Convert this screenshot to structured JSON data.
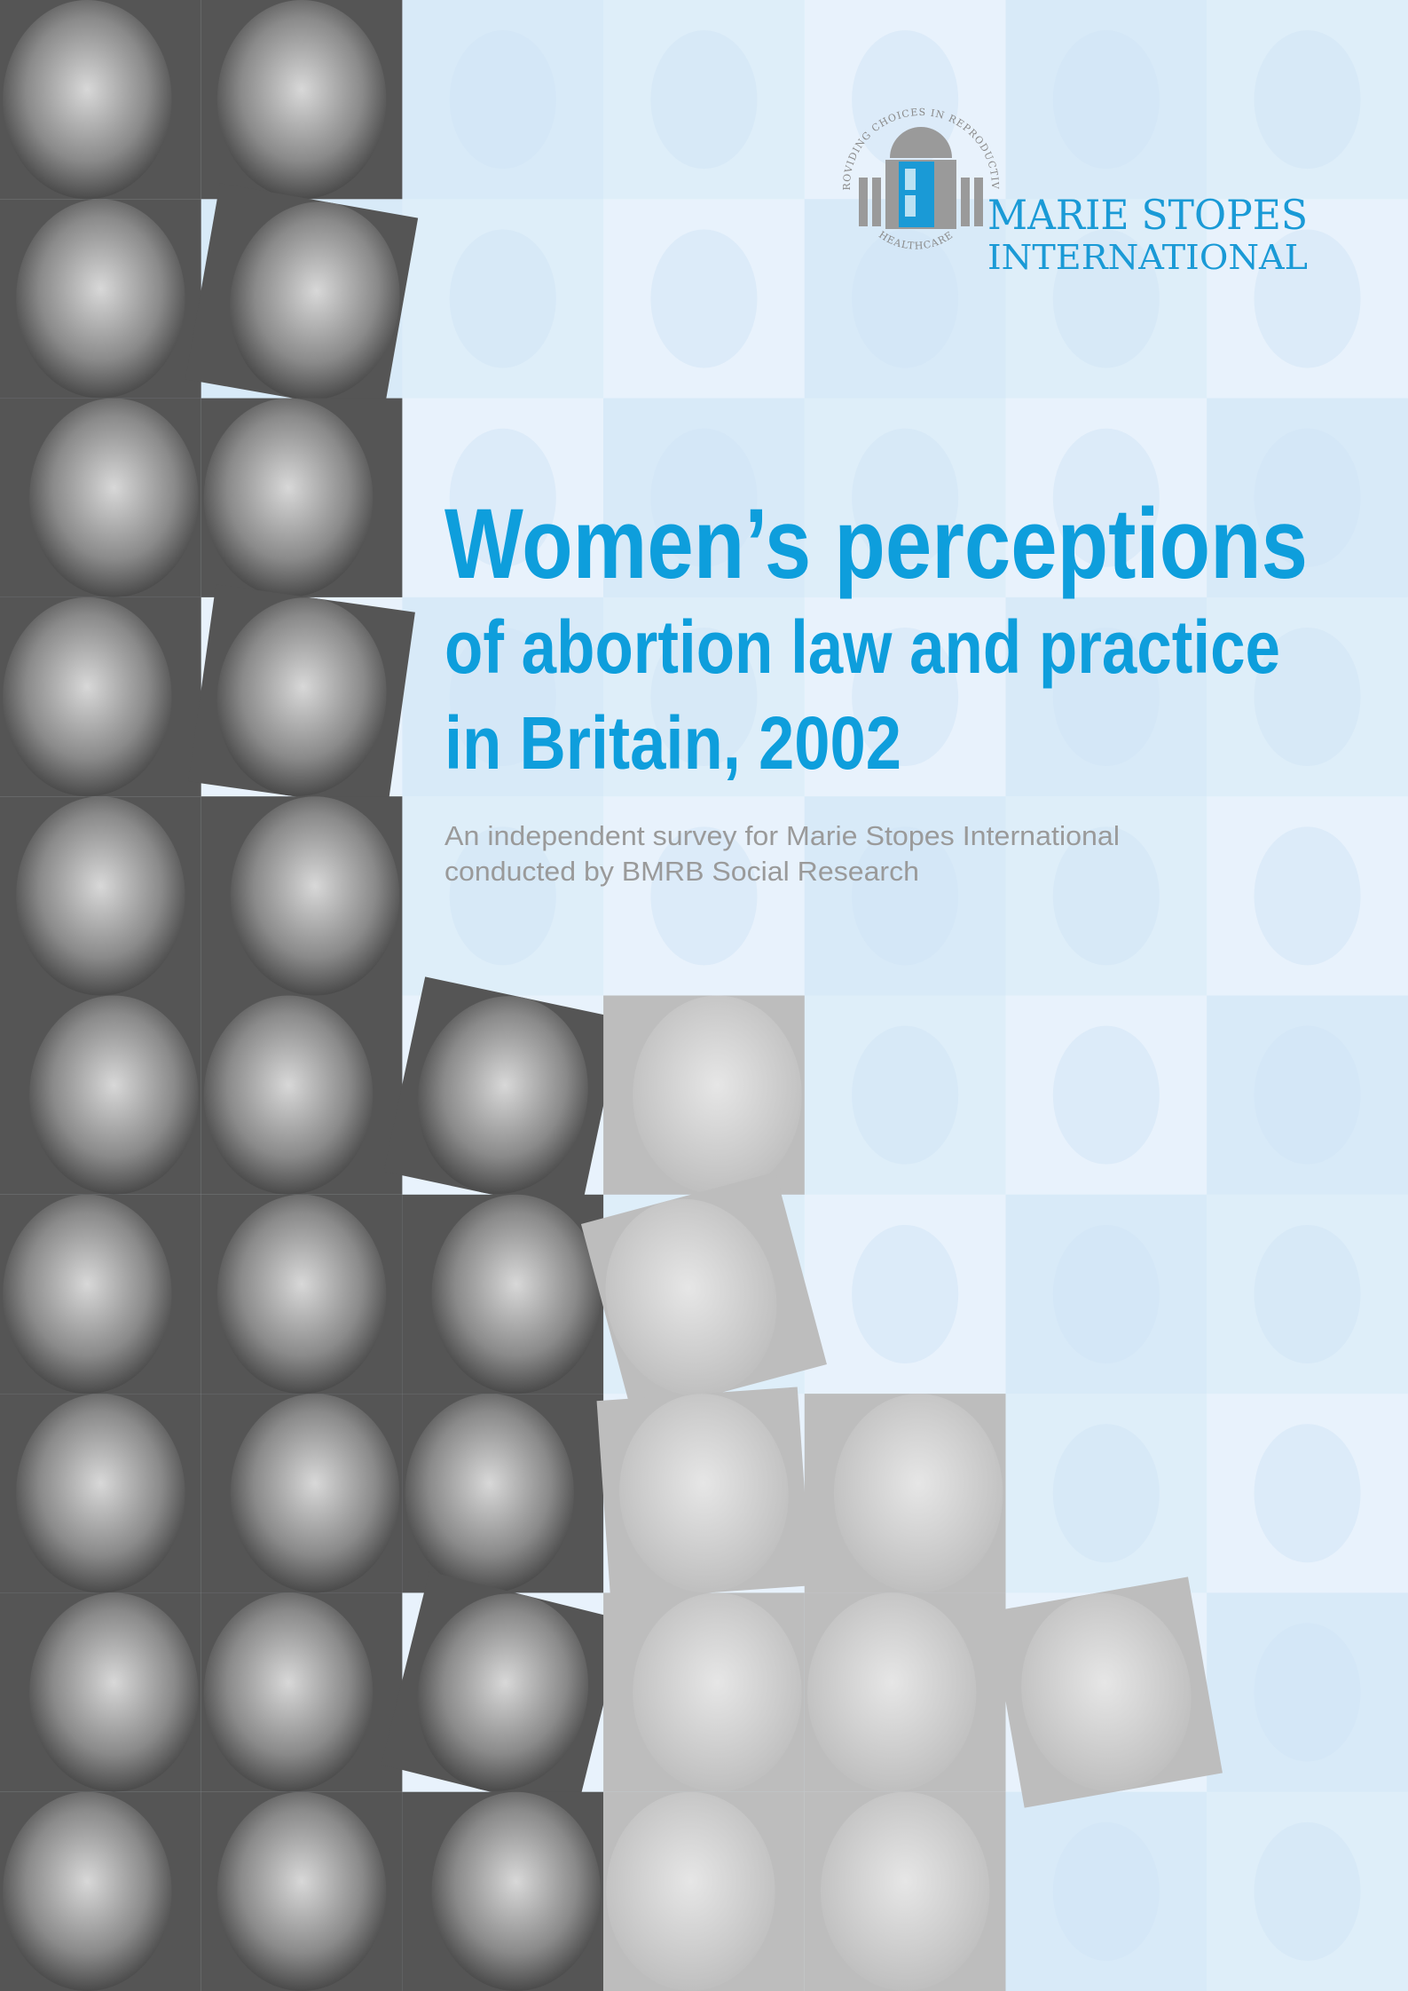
{
  "logo": {
    "arc_top": "PROVIDING CHOICES IN REPRODUCTIVE",
    "arc_bottom": "HEALTHCARE",
    "name_line1": "MARIE STOPES",
    "name_line2": "INTERNATIONAL"
  },
  "title": {
    "line1": "Women’s perceptions",
    "line2": "of abortion law and practice",
    "line3": "in Britain, 2002"
  },
  "subtitle": {
    "line1": "An independent survey for Marie Stopes International",
    "line2": "conducted by BMRB Social Research"
  }
}
